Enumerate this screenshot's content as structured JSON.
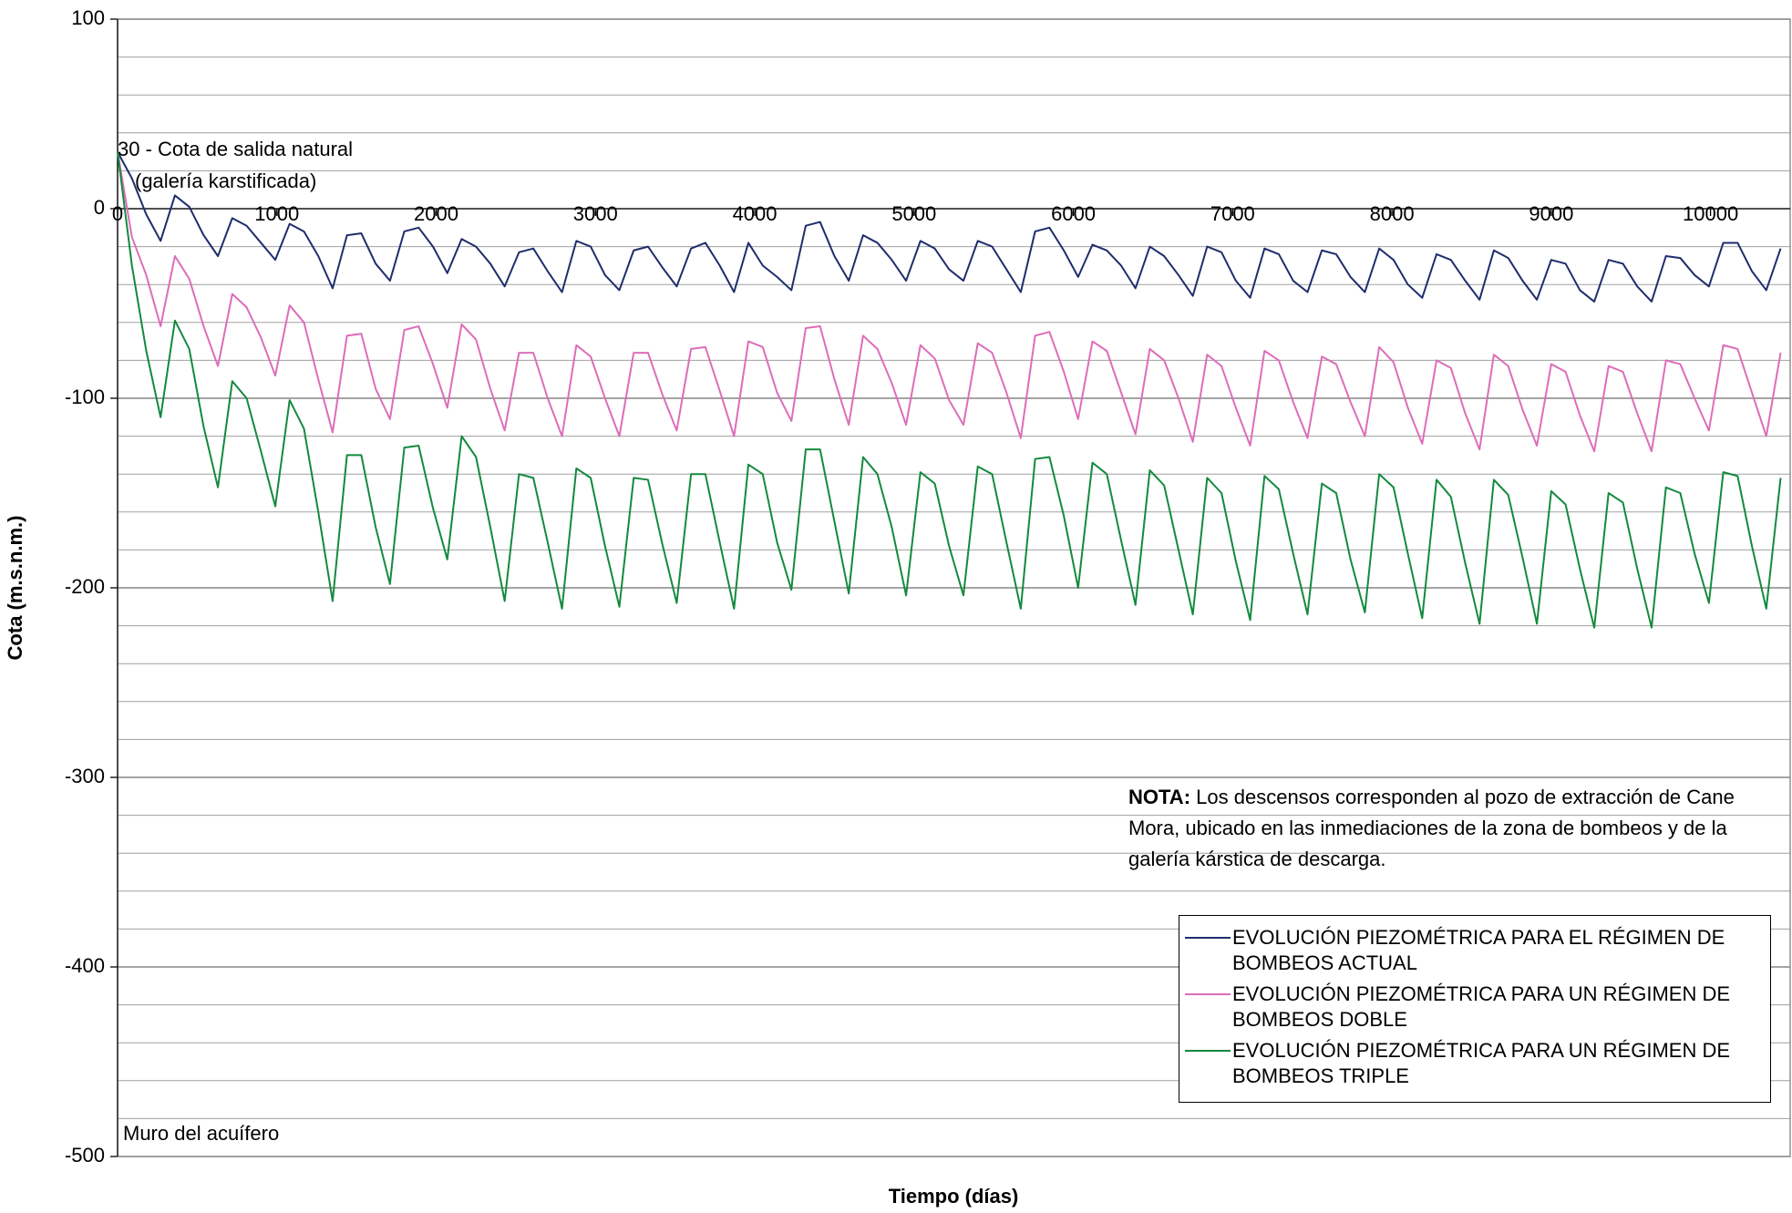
{
  "chart_data": {
    "type": "line",
    "y_label": "Cota (m.s.n.m.)",
    "x_label": "Tiempo (días)",
    "annotations": {
      "natural_outlet": "30 - Cota de  salida natural",
      "natural_outlet_sub": "(galería karstificada)",
      "aquifer_floor": "Muro del acuífero"
    },
    "note_label": "NOTA:",
    "note": "Los descensos corresponden al pozo de extracción de Cane Mora, ubicado en las inmediaciones de la zona de bombeos y de la galería kárstica de descarga.",
    "xlim": [
      0,
      10500
    ],
    "xticks": [
      0,
      1000,
      2000,
      3000,
      4000,
      5000,
      6000,
      7000,
      8000,
      9000,
      10000
    ],
    "ylim": [
      -500,
      100
    ],
    "yticks": [
      -500,
      -400,
      -300,
      -200,
      -100,
      0,
      100
    ],
    "minor_gridlines": [
      80,
      60,
      40,
      20,
      -20,
      -40,
      -60,
      -80,
      -120,
      -140,
      -160,
      -180,
      -220,
      -240,
      -260,
      -280,
      -320,
      -340,
      -360,
      -380,
      -420,
      -440,
      -460,
      -480
    ],
    "grid": true,
    "legend": "lower right",
    "x": [
      0,
      90,
      180,
      270,
      360,
      450,
      540,
      630,
      720,
      810,
      900,
      990,
      1080,
      1170,
      1260,
      1350,
      1440,
      1530,
      1620,
      1710,
      1800,
      1890,
      1980,
      2070,
      2160,
      2250,
      2340,
      2430,
      2520,
      2610,
      2700,
      2790,
      2880,
      2970,
      3060,
      3150,
      3240,
      3330,
      3420,
      3510,
      3600,
      3690,
      3780,
      3870,
      3960,
      4050,
      4140,
      4230,
      4320,
      4410,
      4500,
      4590,
      4680,
      4770,
      4860,
      4950,
      5040,
      5130,
      5220,
      5310,
      5400,
      5490,
      5580,
      5670,
      5760,
      5850,
      5940,
      6030,
      6120,
      6210,
      6300,
      6390,
      6480,
      6570,
      6660,
      6750,
      6840,
      6930,
      7020,
      7110,
      7200,
      7290,
      7380,
      7470,
      7560,
      7650,
      7740,
      7830,
      7920,
      8010,
      8100,
      8190,
      8280,
      8370,
      8460,
      8550,
      8640,
      8730,
      8820,
      8910,
      9000,
      9090,
      9180,
      9270,
      9360,
      9450,
      9540,
      9630,
      9720,
      9810,
      9900,
      9990,
      10080,
      10170,
      10260,
      10350,
      10440
    ],
    "series": [
      {
        "name": "EVOLUCIÓN PIEZOMÉTRICA PARA EL RÉGIMEN DE BOMBEOS ACTUAL",
        "color": "#1f2d6b",
        "values": [
          30,
          16,
          -3,
          -17,
          7,
          1,
          -14,
          -25,
          -5,
          -9,
          -18,
          -27,
          -8,
          -12,
          -25,
          -42,
          -14,
          -13,
          -29,
          -38,
          -12,
          -10,
          -20,
          -34,
          -16,
          -20,
          -29,
          -41,
          -23,
          -21,
          -33,
          -44,
          -17,
          -20,
          -35,
          -43,
          -22,
          -20,
          -31,
          -41,
          -21,
          -18,
          -30,
          -44,
          -18,
          -30,
          -36,
          -43,
          -9,
          -7,
          -25,
          -38,
          -14,
          -18,
          -27,
          -38,
          -17,
          -21,
          -32,
          -38,
          -17,
          -20,
          -32,
          -44,
          -12,
          -10,
          -22,
          -36,
          -19,
          -22,
          -30,
          -42,
          -20,
          -25,
          -35,
          -46,
          -20,
          -23,
          -38,
          -47,
          -21,
          -24,
          -38,
          -44,
          -22,
          -24,
          -36,
          -44,
          -21,
          -27,
          -40,
          -47,
          -24,
          -27,
          -38,
          -48,
          -22,
          -26,
          -38,
          -48,
          -27,
          -29,
          -43,
          -49,
          -27,
          -29,
          -41,
          -49,
          -25,
          -26,
          -35,
          -41,
          -18,
          -18,
          -33,
          -43,
          -21
        ]
      },
      {
        "name": "EVOLUCIÓN PIEZOMÉTRICA PARA UN RÉGIMEN DE BOMBEOS DOBLE",
        "color": "#dd6db9",
        "values": [
          30,
          -15,
          -35,
          -62,
          -25,
          -37,
          -62,
          -83,
          -45,
          -52,
          -68,
          -88,
          -51,
          -60,
          -90,
          -118,
          -67,
          -66,
          -95,
          -111,
          -64,
          -62,
          -82,
          -105,
          -61,
          -69,
          -95,
          -117,
          -76,
          -76,
          -100,
          -120,
          -72,
          -78,
          -100,
          -120,
          -76,
          -76,
          -98,
          -117,
          -74,
          -73,
          -96,
          -120,
          -70,
          -73,
          -97,
          -112,
          -63,
          -62,
          -90,
          -114,
          -67,
          -74,
          -92,
          -114,
          -72,
          -79,
          -101,
          -114,
          -71,
          -76,
          -97,
          -121,
          -67,
          -65,
          -86,
          -111,
          -70,
          -75,
          -97,
          -119,
          -74,
          -80,
          -100,
          -123,
          -77,
          -83,
          -105,
          -125,
          -75,
          -80,
          -102,
          -121,
          -78,
          -82,
          -102,
          -120,
          -73,
          -81,
          -105,
          -124,
          -80,
          -84,
          -108,
          -127,
          -77,
          -83,
          -106,
          -125,
          -82,
          -86,
          -109,
          -128,
          -83,
          -86,
          -108,
          -128,
          -80,
          -82,
          -100,
          -117,
          -72,
          -74,
          -97,
          -120,
          -76
        ]
      },
      {
        "name": "EVOLUCIÓN PIEZOMÉTRICA PARA UN RÉGIMEN DE BOMBEOS TRIPLE",
        "color": "#138a3e",
        "values": [
          30,
          -30,
          -75,
          -110,
          -59,
          -74,
          -115,
          -147,
          -91,
          -100,
          -128,
          -157,
          -101,
          -116,
          -160,
          -207,
          -130,
          -130,
          -168,
          -198,
          -126,
          -125,
          -158,
          -185,
          -120,
          -131,
          -168,
          -207,
          -140,
          -142,
          -176,
          -211,
          -137,
          -142,
          -178,
          -210,
          -142,
          -143,
          -177,
          -208,
          -140,
          -140,
          -176,
          -211,
          -135,
          -140,
          -176,
          -201,
          -127,
          -127,
          -165,
          -203,
          -131,
          -140,
          -168,
          -204,
          -139,
          -145,
          -178,
          -204,
          -136,
          -140,
          -176,
          -211,
          -132,
          -131,
          -162,
          -200,
          -134,
          -140,
          -175,
          -209,
          -138,
          -146,
          -180,
          -214,
          -142,
          -150,
          -186,
          -217,
          -141,
          -148,
          -182,
          -214,
          -145,
          -150,
          -185,
          -213,
          -140,
          -147,
          -182,
          -216,
          -143,
          -152,
          -187,
          -219,
          -143,
          -151,
          -184,
          -219,
          -149,
          -156,
          -190,
          -221,
          -150,
          -155,
          -190,
          -221,
          -147,
          -150,
          -182,
          -208,
          -139,
          -141,
          -178,
          -211,
          -142
        ]
      }
    ]
  }
}
